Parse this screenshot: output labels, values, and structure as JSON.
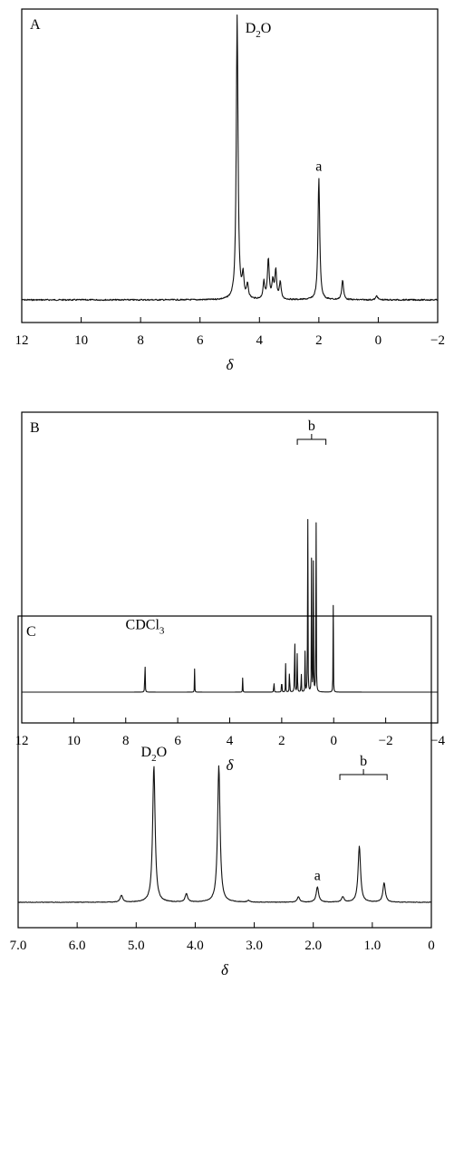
{
  "figure": {
    "panels": [
      {
        "panel_label": "A",
        "x_axis_title": "δ",
        "ticks": [
          "12",
          "10",
          "8",
          "6",
          "4",
          "2",
          "0",
          "−2"
        ],
        "annotations": [
          {
            "text": "D2O",
            "sub": "2",
            "x": 4.75
          },
          {
            "text": "a",
            "x": 2.0
          }
        ]
      },
      {
        "panel_label": "B",
        "x_axis_title": "δ",
        "ticks": [
          "12",
          "10",
          "8",
          "6",
          "4",
          "2",
          "0",
          "−2",
          "−4"
        ],
        "annotations": [
          {
            "text": "CDCl3",
            "sub": "3",
            "x": 7.26
          },
          {
            "text": "b",
            "bracket": [
              0.3,
              1.4
            ]
          }
        ]
      },
      {
        "panel_label": "C",
        "x_axis_title": "δ",
        "ticks": [
          "7.0",
          "6.0",
          "5.0",
          "4.0",
          "3.0",
          "2.0",
          "1.0",
          "0"
        ],
        "annotations": [
          {
            "text": "D2O",
            "sub": "2",
            "x": 4.7
          },
          {
            "text": "a",
            "x": 1.93
          },
          {
            "text": "b",
            "bracket": [
              0.75,
              1.55
            ]
          }
        ]
      }
    ]
  },
  "chart_data": [
    {
      "type": "line",
      "title": "",
      "xlabel": "δ",
      "ylabel": "",
      "x_reversed": true,
      "xlim": [
        12,
        -2
      ],
      "xticks": [
        12,
        10,
        8,
        6,
        4,
        2,
        0,
        -2
      ],
      "ylim": [
        0,
        1.0
      ],
      "grid": false,
      "series": [
        {
          "peaks": [
            {
              "x": 4.75,
              "height": 1.0,
              "label": "D2O"
            },
            {
              "x": 4.55,
              "height": 0.08
            },
            {
              "x": 4.4,
              "height": 0.05
            },
            {
              "x": 3.85,
              "height": 0.06
            },
            {
              "x": 3.7,
              "height": 0.14
            },
            {
              "x": 3.55,
              "height": 0.06
            },
            {
              "x": 3.45,
              "height": 0.1
            },
            {
              "x": 3.3,
              "height": 0.06
            },
            {
              "x": 2.0,
              "height": 0.43,
              "label": "a"
            },
            {
              "x": 1.2,
              "height": 0.07
            },
            {
              "x": 0.05,
              "height": 0.015
            }
          ]
        }
      ]
    },
    {
      "type": "line",
      "title": "",
      "xlabel": "δ",
      "ylabel": "",
      "x_reversed": true,
      "xlim": [
        12,
        -4
      ],
      "xticks": [
        12,
        10,
        8,
        6,
        4,
        2,
        0,
        -2,
        -4
      ],
      "ylim": [
        0,
        1.0
      ],
      "grid": false,
      "series": [
        {
          "peaks": [
            {
              "x": 7.26,
              "height": 0.21,
              "label": "CDCl3"
            },
            {
              "x": 5.35,
              "height": 0.09
            },
            {
              "x": 3.5,
              "height": 0.06
            },
            {
              "x": 2.3,
              "height": 0.07
            },
            {
              "x": 2.0,
              "height": 0.09
            },
            {
              "x": 1.85,
              "height": 0.11
            },
            {
              "x": 1.7,
              "height": 0.15
            },
            {
              "x": 1.5,
              "height": 0.4
            },
            {
              "x": 1.4,
              "height": 0.22
            },
            {
              "x": 1.25,
              "height": 0.12
            },
            {
              "x": 1.1,
              "height": 0.17
            },
            {
              "x": 1.0,
              "height": 1.0
            },
            {
              "x": 0.85,
              "height": 0.65
            },
            {
              "x": 0.78,
              "height": 0.55
            },
            {
              "x": 0.68,
              "height": 0.98
            },
            {
              "x": 0.02,
              "height": 0.37
            }
          ],
          "bracket_label": "b"
        }
      ]
    },
    {
      "type": "line",
      "title": "",
      "xlabel": "δ",
      "ylabel": "",
      "x_reversed": true,
      "xlim": [
        7.0,
        0
      ],
      "xticks": [
        7.0,
        6.0,
        5.0,
        4.0,
        3.0,
        2.0,
        1.0,
        0
      ],
      "ylim": [
        0,
        1.0
      ],
      "grid": false,
      "series": [
        {
          "peaks": [
            {
              "x": 5.25,
              "height": 0.05
            },
            {
              "x": 4.7,
              "height": 1.0,
              "label": "D2O"
            },
            {
              "x": 4.15,
              "height": 0.06
            },
            {
              "x": 3.6,
              "height": 1.0
            },
            {
              "x": 3.1,
              "height": 0.012
            },
            {
              "x": 2.25,
              "height": 0.04
            },
            {
              "x": 1.93,
              "height": 0.11,
              "label": "a"
            },
            {
              "x": 1.5,
              "height": 0.04
            },
            {
              "x": 1.22,
              "height": 0.41
            },
            {
              "x": 0.8,
              "height": 0.14
            }
          ],
          "bracket_label": "b"
        }
      ]
    }
  ]
}
